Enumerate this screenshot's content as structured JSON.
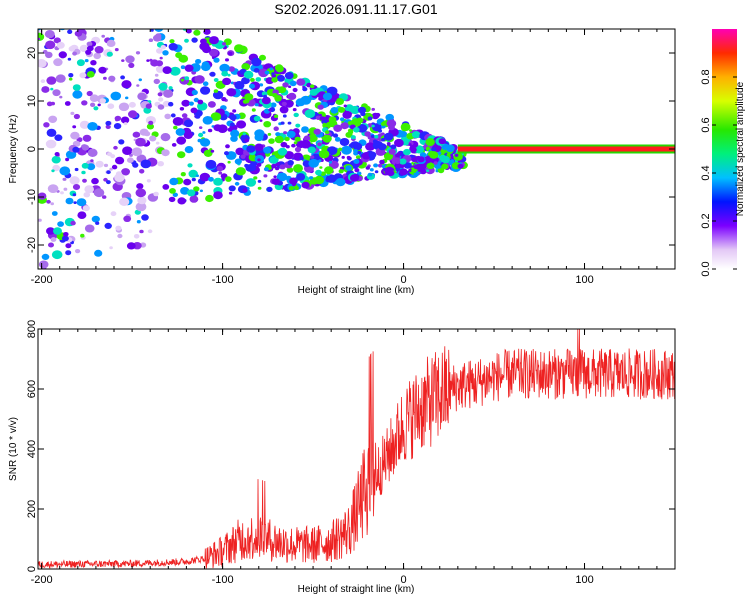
{
  "title": "S202.2026.091.11.17.G01",
  "chart_data": [
    {
      "type": "heatmap",
      "name": "spectrogram",
      "xlabel": "Height of straight line (km)",
      "ylabel": "Frequency (Hz)",
      "xlim": [
        -202,
        150
      ],
      "ylim": [
        -25,
        25
      ],
      "xticks": [
        -200,
        -100,
        0,
        100
      ],
      "yticks": [
        20,
        10,
        0,
        -10,
        -20
      ],
      "tone": {
        "freq": 0,
        "start": 30,
        "end": 150,
        "amplitude": 0.85
      },
      "colorbar": {
        "label": "Normalized spectral amplitude",
        "range": [
          0,
          1
        ],
        "ticks": [
          0.0,
          0.2,
          0.4,
          0.6,
          0.8
        ],
        "tick_labels": [
          "0.0",
          "0.2",
          "0.4",
          "0.6",
          "0.8"
        ]
      }
    },
    {
      "type": "line",
      "name": "snr",
      "xlabel": "Height of straight line (km)",
      "ylabel": "SNR (10 * v/v)",
      "xlim": [
        -202,
        150
      ],
      "ylim": [
        0,
        800
      ],
      "xticks": [
        -200,
        -100,
        0,
        100
      ],
      "yticks": [
        0,
        200,
        400,
        600,
        800
      ],
      "color": "#ee2222",
      "trend": {
        "x": [
          -202,
          -150,
          -120,
          -110,
          -100,
          -90,
          -80,
          -70,
          -60,
          -50,
          -40,
          -30,
          -25,
          -20,
          -15,
          -10,
          -5,
          0,
          10,
          20,
          30,
          40,
          50,
          60,
          80,
          100,
          120,
          150
        ],
        "y": [
          15,
          18,
          25,
          35,
          60,
          100,
          110,
          90,
          80,
          80,
          90,
          130,
          200,
          280,
          320,
          360,
          420,
          480,
          540,
          580,
          610,
          620,
          640,
          650,
          650,
          650,
          650,
          650
        ]
      }
    }
  ]
}
